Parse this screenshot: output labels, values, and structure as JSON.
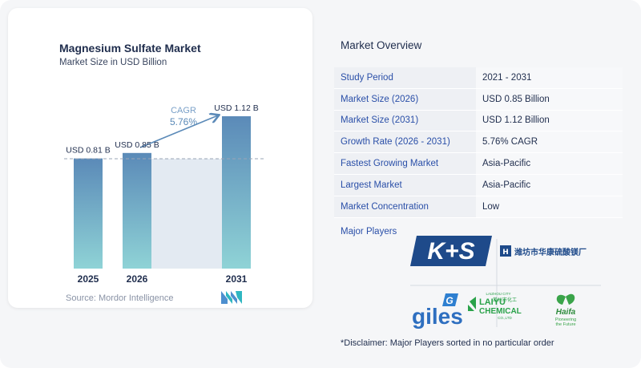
{
  "chart": {
    "title": "Magnesium Sulfate Market",
    "subtitle": "Market Size in USD Billion",
    "source": "Source: Mordor Intelligence",
    "cagr_label": "CAGR",
    "cagr_value": "5.76%"
  },
  "chart_data": {
    "type": "bar",
    "title": "Magnesium Sulfate Market",
    "subtitle": "Market Size in USD Billion",
    "categories": [
      "2025",
      "2026",
      "2031"
    ],
    "values": [
      0.81,
      0.85,
      1.12
    ],
    "data_labels": [
      "USD 0.81 B",
      "USD 0.85 B",
      "USD 1.12 B"
    ],
    "annotation": "CAGR 5.76%",
    "colors": {
      "bar_top": "#5b8ab8",
      "bar_bottom": "#8fd3d6",
      "band": "#e3eaf2",
      "arrow": "#5b8ab8",
      "cagr_text": "#5b8ab8"
    }
  },
  "overview": {
    "title": "Market Overview",
    "rows": [
      {
        "label": "Study Period",
        "value": "2021 - 2031"
      },
      {
        "label": "Market Size (2026)",
        "value": "USD 0.85 Billion"
      },
      {
        "label": "Market Size (2031)",
        "value": "USD 1.12 Billion"
      },
      {
        "label": "Growth Rate (2026 - 2031)",
        "value": "5.76% CAGR"
      },
      {
        "label": "Fastest Growing Market",
        "value": "Asia-Pacific"
      },
      {
        "label": "Largest Market",
        "value": "Asia-Pacific"
      },
      {
        "label": "Market Concentration",
        "value": "Low"
      }
    ],
    "players_label": "Major Players",
    "players": {
      "ks": "K+S",
      "weifang": "潍坊市华康硫酸镁厂",
      "giles": "giles",
      "laiyu_small": "LAIZHOU CITY",
      "laiyu_cn": "莱州市化工",
      "laiyu_name": "LAIYU",
      "laiyu_chem": "CHEMICAL",
      "laiyu_co": "CO.,LTD",
      "haifa": "Haifa",
      "haifa_tag1": "Pioneering",
      "haifa_tag2": "the Future"
    },
    "disclaimer": "*Disclaimer: Major Players sorted in no particular order"
  }
}
